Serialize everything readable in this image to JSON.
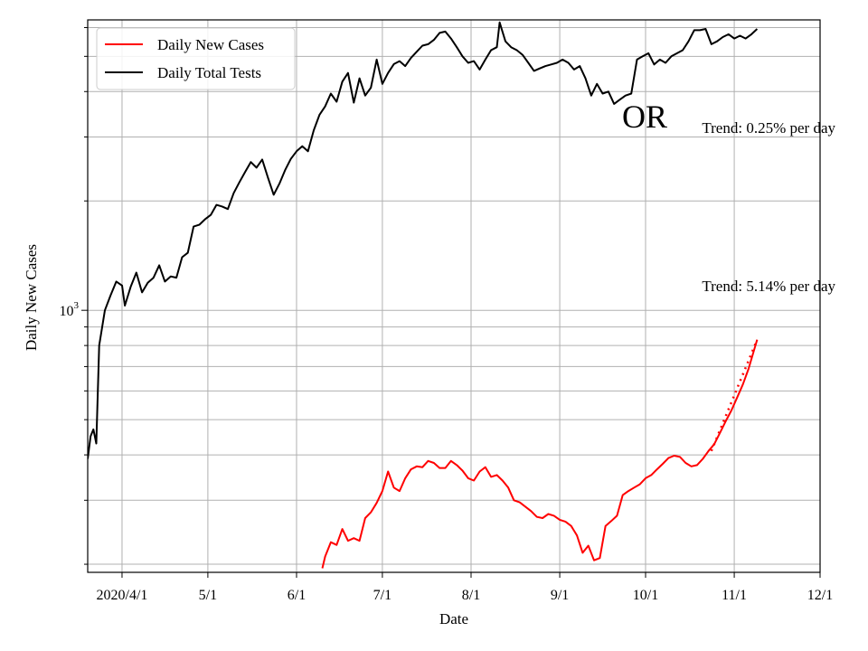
{
  "chart_data": {
    "type": "line",
    "xlabel": "Date",
    "ylabel": "Daily New Cases",
    "yscale": "log",
    "ylim": [
      190,
      6300
    ],
    "xlim": [
      "2020-03-20",
      "2020-12-01"
    ],
    "grid": true,
    "legend_position": "top-left",
    "x_tick_labels": [
      {
        "date": "2020-04-01",
        "label": "2020/4/1"
      },
      {
        "date": "2020-05-01",
        "label": "5/1"
      },
      {
        "date": "2020-06-01",
        "label": "6/1"
      },
      {
        "date": "2020-07-01",
        "label": "7/1"
      },
      {
        "date": "2020-08-01",
        "label": "8/1"
      },
      {
        "date": "2020-09-01",
        "label": "9/1"
      },
      {
        "date": "2020-10-01",
        "label": "10/1"
      },
      {
        "date": "2020-11-01",
        "label": "11/1"
      },
      {
        "date": "2020-12-01",
        "label": "12/1"
      }
    ],
    "y_tick_label": {
      "base": "10",
      "exponent": "3",
      "value": 1000
    },
    "series": [
      {
        "name": "Daily Total Tests",
        "color": "#000000",
        "points": [
          [
            "2020-03-20",
            390
          ],
          [
            "2020-03-21",
            450
          ],
          [
            "2020-03-22",
            470
          ],
          [
            "2020-03-23",
            430
          ],
          [
            "2020-03-24",
            800
          ],
          [
            "2020-03-26",
            1000
          ],
          [
            "2020-03-28",
            1100
          ],
          [
            "2020-03-30",
            1200
          ],
          [
            "2020-04-01",
            1170
          ],
          [
            "2020-04-02",
            1030
          ],
          [
            "2020-04-04",
            1160
          ],
          [
            "2020-04-06",
            1270
          ],
          [
            "2020-04-08",
            1120
          ],
          [
            "2020-04-10",
            1190
          ],
          [
            "2020-04-12",
            1230
          ],
          [
            "2020-04-14",
            1330
          ],
          [
            "2020-04-16",
            1200
          ],
          [
            "2020-04-18",
            1240
          ],
          [
            "2020-04-20",
            1230
          ],
          [
            "2020-04-22",
            1400
          ],
          [
            "2020-04-24",
            1440
          ],
          [
            "2020-04-26",
            1700
          ],
          [
            "2020-04-28",
            1720
          ],
          [
            "2020-04-30",
            1780
          ],
          [
            "2020-05-02",
            1830
          ],
          [
            "2020-05-04",
            1950
          ],
          [
            "2020-05-06",
            1930
          ],
          [
            "2020-05-08",
            1900
          ],
          [
            "2020-05-10",
            2100
          ],
          [
            "2020-05-12",
            2250
          ],
          [
            "2020-05-14",
            2400
          ],
          [
            "2020-05-16",
            2560
          ],
          [
            "2020-05-18",
            2470
          ],
          [
            "2020-05-20",
            2600
          ],
          [
            "2020-05-22",
            2320
          ],
          [
            "2020-05-24",
            2080
          ],
          [
            "2020-05-26",
            2230
          ],
          [
            "2020-05-28",
            2430
          ],
          [
            "2020-05-30",
            2610
          ],
          [
            "2020-06-01",
            2740
          ],
          [
            "2020-06-03",
            2830
          ],
          [
            "2020-06-05",
            2740
          ],
          [
            "2020-06-07",
            3130
          ],
          [
            "2020-06-09",
            3450
          ],
          [
            "2020-06-11",
            3640
          ],
          [
            "2020-06-13",
            3950
          ],
          [
            "2020-06-15",
            3750
          ],
          [
            "2020-06-17",
            4260
          ],
          [
            "2020-06-19",
            4500
          ],
          [
            "2020-06-21",
            3730
          ],
          [
            "2020-06-23",
            4350
          ],
          [
            "2020-06-25",
            3900
          ],
          [
            "2020-06-27",
            4100
          ],
          [
            "2020-06-29",
            4900
          ],
          [
            "2020-07-01",
            4200
          ],
          [
            "2020-07-03",
            4500
          ],
          [
            "2020-07-05",
            4760
          ],
          [
            "2020-07-07",
            4850
          ],
          [
            "2020-07-09",
            4700
          ],
          [
            "2020-07-11",
            4950
          ],
          [
            "2020-07-13",
            5150
          ],
          [
            "2020-07-15",
            5350
          ],
          [
            "2020-07-17",
            5400
          ],
          [
            "2020-07-19",
            5550
          ],
          [
            "2020-07-21",
            5800
          ],
          [
            "2020-07-23",
            5850
          ],
          [
            "2020-07-25",
            5600
          ],
          [
            "2020-07-27",
            5300
          ],
          [
            "2020-07-29",
            5000
          ],
          [
            "2020-07-31",
            4800
          ],
          [
            "2020-08-02",
            4850
          ],
          [
            "2020-08-04",
            4600
          ],
          [
            "2020-08-06",
            4900
          ],
          [
            "2020-08-08",
            5200
          ],
          [
            "2020-08-10",
            5300
          ],
          [
            "2020-08-11",
            6200
          ],
          [
            "2020-08-13",
            5500
          ],
          [
            "2020-08-15",
            5300
          ],
          [
            "2020-08-17",
            5200
          ],
          [
            "2020-08-19",
            5050
          ],
          [
            "2020-08-21",
            4800
          ],
          [
            "2020-08-23",
            4560
          ],
          [
            "2020-08-25",
            4630
          ],
          [
            "2020-08-27",
            4700
          ],
          [
            "2020-08-29",
            4750
          ],
          [
            "2020-08-31",
            4800
          ],
          [
            "2020-09-02",
            4900
          ],
          [
            "2020-09-04",
            4800
          ],
          [
            "2020-09-06",
            4600
          ],
          [
            "2020-09-08",
            4700
          ],
          [
            "2020-09-10",
            4350
          ],
          [
            "2020-09-12",
            3900
          ],
          [
            "2020-09-14",
            4200
          ],
          [
            "2020-09-16",
            3950
          ],
          [
            "2020-09-18",
            4000
          ],
          [
            "2020-09-20",
            3700
          ],
          [
            "2020-09-22",
            3800
          ],
          [
            "2020-09-24",
            3900
          ],
          [
            "2020-09-26",
            3950
          ],
          [
            "2020-09-28",
            4900
          ],
          [
            "2020-09-30",
            5000
          ],
          [
            "2020-10-02",
            5100
          ],
          [
            "2020-10-04",
            4750
          ],
          [
            "2020-10-06",
            4900
          ],
          [
            "2020-10-08",
            4800
          ],
          [
            "2020-10-10",
            5000
          ],
          [
            "2020-10-12",
            5100
          ],
          [
            "2020-10-14",
            5200
          ],
          [
            "2020-10-16",
            5500
          ],
          [
            "2020-10-18",
            5900
          ],
          [
            "2020-10-20",
            5900
          ],
          [
            "2020-10-22",
            5950
          ],
          [
            "2020-10-24",
            5400
          ],
          [
            "2020-10-26",
            5500
          ],
          [
            "2020-10-28",
            5650
          ],
          [
            "2020-10-30",
            5750
          ],
          [
            "2020-11-01",
            5600
          ],
          [
            "2020-11-03",
            5700
          ],
          [
            "2020-11-05",
            5600
          ],
          [
            "2020-11-07",
            5750
          ],
          [
            "2020-11-09",
            5950
          ]
        ]
      },
      {
        "name": "Daily New Cases",
        "color": "#ff0000",
        "points": [
          [
            "2020-06-10",
            195
          ],
          [
            "2020-06-11",
            210
          ],
          [
            "2020-06-13",
            230
          ],
          [
            "2020-06-15",
            226
          ],
          [
            "2020-06-17",
            250
          ],
          [
            "2020-06-19",
            232
          ],
          [
            "2020-06-21",
            236
          ],
          [
            "2020-06-23",
            232
          ],
          [
            "2020-06-25",
            268
          ],
          [
            "2020-06-27",
            278
          ],
          [
            "2020-06-29",
            295
          ],
          [
            "2020-07-01",
            318
          ],
          [
            "2020-07-03",
            360
          ],
          [
            "2020-07-05",
            325
          ],
          [
            "2020-07-07",
            318
          ],
          [
            "2020-07-09",
            345
          ],
          [
            "2020-07-11",
            365
          ],
          [
            "2020-07-13",
            372
          ],
          [
            "2020-07-15",
            370
          ],
          [
            "2020-07-17",
            385
          ],
          [
            "2020-07-19",
            380
          ],
          [
            "2020-07-21",
            368
          ],
          [
            "2020-07-23",
            368
          ],
          [
            "2020-07-25",
            385
          ],
          [
            "2020-07-27",
            375
          ],
          [
            "2020-07-29",
            362
          ],
          [
            "2020-07-31",
            345
          ],
          [
            "2020-08-02",
            340
          ],
          [
            "2020-08-04",
            360
          ],
          [
            "2020-08-06",
            370
          ],
          [
            "2020-08-08",
            348
          ],
          [
            "2020-08-10",
            352
          ],
          [
            "2020-08-12",
            340
          ],
          [
            "2020-08-14",
            325
          ],
          [
            "2020-08-16",
            300
          ],
          [
            "2020-08-18",
            296
          ],
          [
            "2020-08-20",
            288
          ],
          [
            "2020-08-22",
            280
          ],
          [
            "2020-08-24",
            270
          ],
          [
            "2020-08-26",
            268
          ],
          [
            "2020-08-28",
            275
          ],
          [
            "2020-08-30",
            272
          ],
          [
            "2020-09-01",
            265
          ],
          [
            "2020-09-03",
            262
          ],
          [
            "2020-09-05",
            255
          ],
          [
            "2020-09-07",
            240
          ],
          [
            "2020-09-09",
            215
          ],
          [
            "2020-09-11",
            225
          ],
          [
            "2020-09-13",
            205
          ],
          [
            "2020-09-15",
            208
          ],
          [
            "2020-09-17",
            255
          ],
          [
            "2020-09-19",
            263
          ],
          [
            "2020-09-21",
            272
          ],
          [
            "2020-09-23",
            310
          ],
          [
            "2020-09-25",
            318
          ],
          [
            "2020-09-27",
            325
          ],
          [
            "2020-09-29",
            332
          ],
          [
            "2020-10-01",
            345
          ],
          [
            "2020-10-03",
            352
          ],
          [
            "2020-10-05",
            365
          ],
          [
            "2020-10-07",
            378
          ],
          [
            "2020-10-09",
            392
          ],
          [
            "2020-10-11",
            398
          ],
          [
            "2020-10-13",
            395
          ],
          [
            "2020-10-15",
            380
          ],
          [
            "2020-10-17",
            372
          ],
          [
            "2020-10-19",
            375
          ],
          [
            "2020-10-21",
            390
          ],
          [
            "2020-10-23",
            410
          ],
          [
            "2020-10-25",
            428
          ],
          [
            "2020-10-27",
            460
          ],
          [
            "2020-10-29",
            495
          ],
          [
            "2020-10-31",
            530
          ],
          [
            "2020-11-02",
            575
          ],
          [
            "2020-11-04",
            625
          ],
          [
            "2020-11-06",
            690
          ],
          [
            "2020-11-08",
            780
          ],
          [
            "2020-11-09",
            830
          ]
        ]
      },
      {
        "name": "",
        "style": "dotted",
        "color": "#ff0000",
        "points": [
          [
            "2020-10-24",
            410
          ],
          [
            "2020-11-09",
            830
          ]
        ]
      }
    ],
    "annotations": [
      {
        "text": "Trend: 0.25% per day",
        "near": "tests"
      },
      {
        "text": "Trend: 5.14% per day",
        "near": "cases"
      },
      {
        "text": "OR",
        "role": "state"
      }
    ]
  }
}
